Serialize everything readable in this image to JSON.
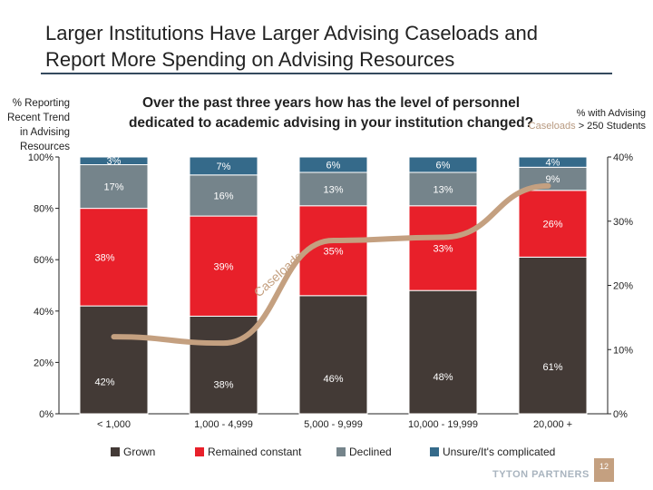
{
  "title_line1": "Larger Institutions Have Larger Advising Caseloads and",
  "title_line2": "Report More Spending on Advising Resources",
  "page_number": "12",
  "brand": "TYTON PARTNERS",
  "chart_data": {
    "type": "bar",
    "stacked": true,
    "title": "Over the past three years how has the level of personnel dedicated to academic advising in your institution changed?",
    "ylabel": "% Reporting Recent Trend in Advising Resources",
    "y2label_prefix": "% with Advising",
    "y2label_highlight": "Caseloads",
    "y2label_suffix": "> 250 Students",
    "ylim": [
      0,
      100
    ],
    "y2lim": [
      0,
      40
    ],
    "yticks": [
      "0%",
      "20%",
      "40%",
      "60%",
      "80%",
      "100%"
    ],
    "y2ticks": [
      "0%",
      "10%",
      "20%",
      "30%",
      "40%"
    ],
    "categories": [
      "< 1,000",
      "1,000 - 4,999",
      "5,000 - 9,999",
      "10,000 - 19,999",
      "20,000 +"
    ],
    "series": [
      {
        "name": "Grown",
        "color": "#433a36",
        "values": [
          42,
          38,
          46,
          48,
          61
        ]
      },
      {
        "name": "Remained constant",
        "color": "#e8202a",
        "values": [
          38,
          39,
          35,
          33,
          26
        ]
      },
      {
        "name": "Declined",
        "color": "#75848b",
        "values": [
          17,
          16,
          13,
          13,
          9
        ]
      },
      {
        "name": "Unsure/It's complicated",
        "color": "#356a8a",
        "values": [
          3,
          7,
          6,
          6,
          4
        ]
      }
    ],
    "line": {
      "name": "Caseloads",
      "color": "#c4a080",
      "axis": "right",
      "values": [
        12,
        11,
        27,
        27.5,
        35.5
      ]
    },
    "legend": "bottom",
    "grid": false
  }
}
